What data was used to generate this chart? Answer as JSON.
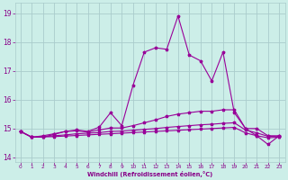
{
  "x": [
    0,
    1,
    2,
    3,
    4,
    5,
    6,
    7,
    8,
    9,
    10,
    11,
    12,
    13,
    14,
    15,
    16,
    17,
    18,
    19,
    20,
    21,
    22,
    23
  ],
  "main_line": [
    14.9,
    14.7,
    14.7,
    14.8,
    14.9,
    14.95,
    14.9,
    15.05,
    15.55,
    15.1,
    16.5,
    17.65,
    17.8,
    17.75,
    18.9,
    17.55,
    17.35,
    16.65,
    17.65,
    15.55,
    15.0,
    14.75,
    14.45,
    14.75
  ],
  "line2": [
    14.9,
    14.7,
    14.75,
    14.82,
    14.9,
    14.92,
    14.88,
    14.95,
    15.02,
    15.02,
    15.1,
    15.2,
    15.3,
    15.42,
    15.5,
    15.55,
    15.6,
    15.6,
    15.65,
    15.65,
    15.0,
    15.0,
    14.75,
    14.75
  ],
  "line3": [
    14.9,
    14.7,
    14.72,
    14.75,
    14.78,
    14.82,
    14.84,
    14.86,
    14.9,
    14.91,
    14.94,
    14.97,
    15.0,
    15.04,
    15.07,
    15.1,
    15.13,
    15.15,
    15.18,
    15.2,
    14.95,
    14.85,
    14.73,
    14.72
  ],
  "line4": [
    14.9,
    14.7,
    14.71,
    14.72,
    14.74,
    14.76,
    14.78,
    14.8,
    14.82,
    14.84,
    14.86,
    14.88,
    14.9,
    14.92,
    14.94,
    14.96,
    14.98,
    15.0,
    15.02,
    15.04,
    14.85,
    14.75,
    14.68,
    14.7
  ],
  "bg_color": "#cceee8",
  "grid_color": "#aacccc",
  "line_color": "#990099",
  "marker": "*",
  "ylim": [
    13.85,
    19.35
  ],
  "xlim": [
    -0.5,
    23.5
  ],
  "xlabel": "Windchill (Refroidissement éolien,°C)",
  "yticks": [
    14,
    15,
    16,
    17,
    18,
    19
  ],
  "xticks": [
    0,
    1,
    2,
    3,
    4,
    5,
    6,
    7,
    8,
    9,
    10,
    11,
    12,
    13,
    14,
    15,
    16,
    17,
    18,
    19,
    20,
    21,
    22,
    23
  ],
  "label_color": "#880088",
  "tick_color": "#880088",
  "figw": 3.2,
  "figh": 2.0,
  "dpi": 100
}
